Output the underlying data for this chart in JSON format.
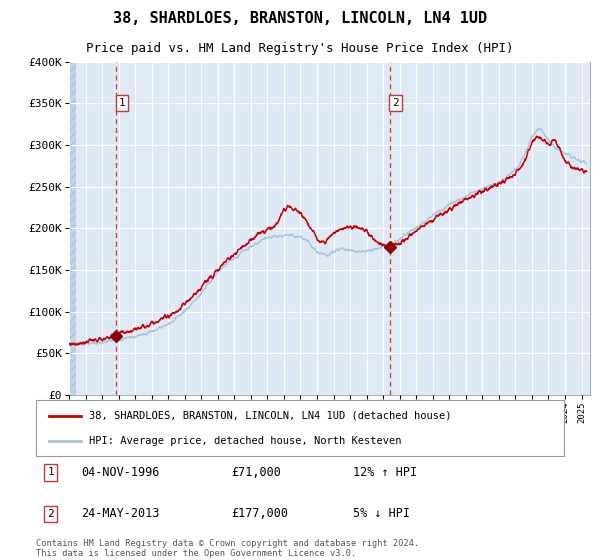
{
  "title": "38, SHARDLOES, BRANSTON, LINCOLN, LN4 1UD",
  "subtitle": "Price paid vs. HM Land Registry's House Price Index (HPI)",
  "legend_line1": "38, SHARDLOES, BRANSTON, LINCOLN, LN4 1UD (detached house)",
  "legend_line2": "HPI: Average price, detached house, North Kesteven",
  "annotation1_label": "1",
  "annotation1_date": "04-NOV-1996",
  "annotation1_price": "£71,000",
  "annotation1_hpi": "12% ↑ HPI",
  "annotation1_year": 1996.84,
  "annotation1_value": 71000,
  "annotation2_label": "2",
  "annotation2_date": "24-MAY-2013",
  "annotation2_price": "£177,000",
  "annotation2_hpi": "5% ↓ HPI",
  "annotation2_year": 2013.39,
  "annotation2_value": 177000,
  "hpi_color": "#aac4dd",
  "price_color": "#cc0000",
  "marker_color": "#880000",
  "vline_color": "#dd3333",
  "plot_bg": "#ddeaf6",
  "grid_color": "#ffffff",
  "ylim": [
    0,
    400000
  ],
  "yticks": [
    0,
    50000,
    100000,
    150000,
    200000,
    250000,
    300000,
    350000,
    400000
  ],
  "footer": "Contains HM Land Registry data © Crown copyright and database right 2024.\nThis data is licensed under the Open Government Licence v3.0.",
  "title_fontsize": 11,
  "subtitle_fontsize": 9
}
